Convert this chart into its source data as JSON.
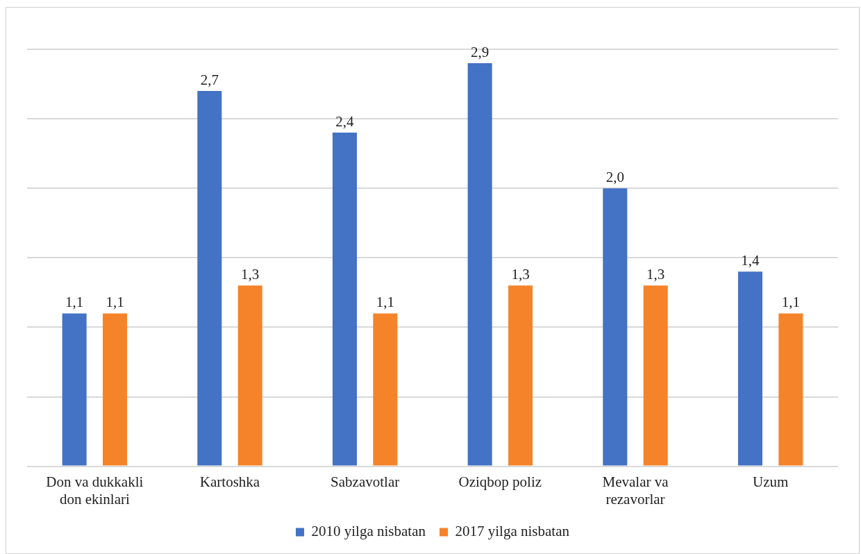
{
  "chart_data": {
    "type": "bar",
    "categories": [
      "Don va dukkakli don ekinlari",
      "Kartoshka",
      "Sabzavotlar",
      "Oziqbop poliz",
      "Mevalar va rezavorlar",
      "Uzum"
    ],
    "series": [
      {
        "name": "2010 yilga nisbatan",
        "color": "#4472c4",
        "values": [
          1.1,
          2.7,
          2.4,
          2.9,
          2.0,
          1.4
        ],
        "value_labels": [
          "1,1",
          "2,7",
          "2,4",
          "2,9",
          "2,0",
          "1,4"
        ]
      },
      {
        "name": "2017 yilga nisbatan",
        "color": "#f5832a",
        "values": [
          1.1,
          1.3,
          1.1,
          1.3,
          1.3,
          1.1
        ],
        "value_labels": [
          "1,1",
          "1,3",
          "1,1",
          "1,3",
          "1,3",
          "1,1"
        ]
      }
    ],
    "ylim": [
      0,
      3
    ],
    "yticks": [
      0,
      0.5,
      1,
      1.5,
      2,
      2.5,
      3
    ],
    "grid": "y",
    "tick_labels": "x",
    "legend": "bottom"
  }
}
